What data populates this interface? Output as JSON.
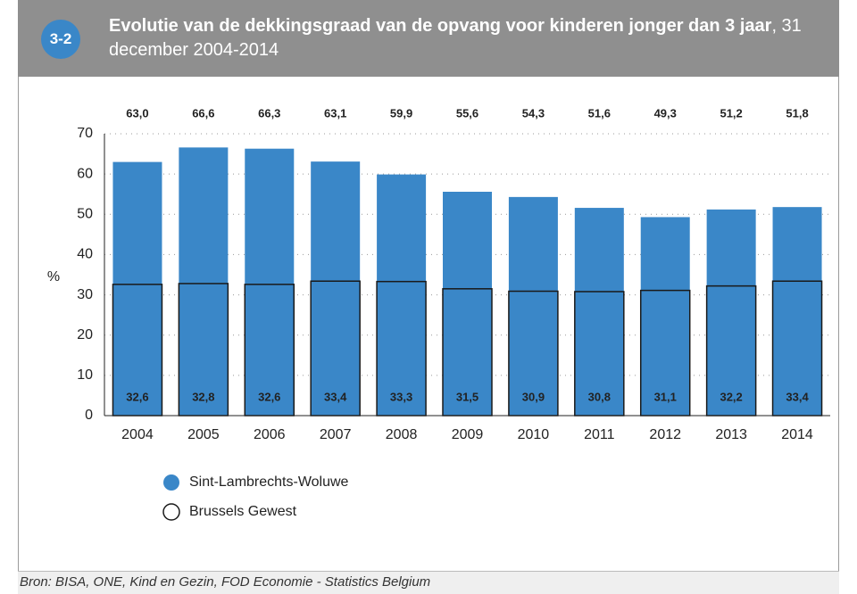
{
  "badge": "3-2",
  "chart_data": {
    "type": "bar",
    "title": "Evolutie van de dekkingsgraad van de opvang voor kinderen jonger dan 3 jaar",
    "subtitle": ", 31 december 2004-2014",
    "y_label": "%",
    "categories": [
      "2004",
      "2005",
      "2006",
      "2007",
      "2008",
      "2009",
      "2010",
      "2011",
      "2012",
      "2013",
      "2014"
    ],
    "series": [
      {
        "name": "Sint-Lambrechts-Woluwe",
        "color": "#3a87c8",
        "values": [
          63.0,
          66.6,
          66.3,
          63.1,
          59.9,
          55.6,
          54.3,
          51.6,
          49.3,
          51.2,
          51.8
        ],
        "value_labels": [
          "63,0",
          "66,6",
          "66,3",
          "63,1",
          "59,9",
          "55,6",
          "54,3",
          "51,6",
          "49,3",
          "51,2",
          "51,8"
        ]
      },
      {
        "name": "Brussels Gewest",
        "color": "#1a1a1a",
        "values": [
          32.6,
          32.8,
          32.6,
          33.4,
          33.3,
          31.5,
          30.9,
          30.8,
          31.1,
          32.2,
          33.4
        ],
        "value_labels": [
          "32,6",
          "32,8",
          "32,6",
          "33,4",
          "33,3",
          "31,5",
          "30,9",
          "30,8",
          "31,1",
          "32,2",
          "33,4"
        ]
      }
    ],
    "ylim": [
      0,
      70
    ],
    "yticks": [
      0,
      10,
      20,
      30,
      40,
      50,
      60,
      70
    ],
    "grid": true,
    "source": "Bron: BISA, ONE, Kind en Gezin, FOD Economie - Statistics Belgium"
  }
}
